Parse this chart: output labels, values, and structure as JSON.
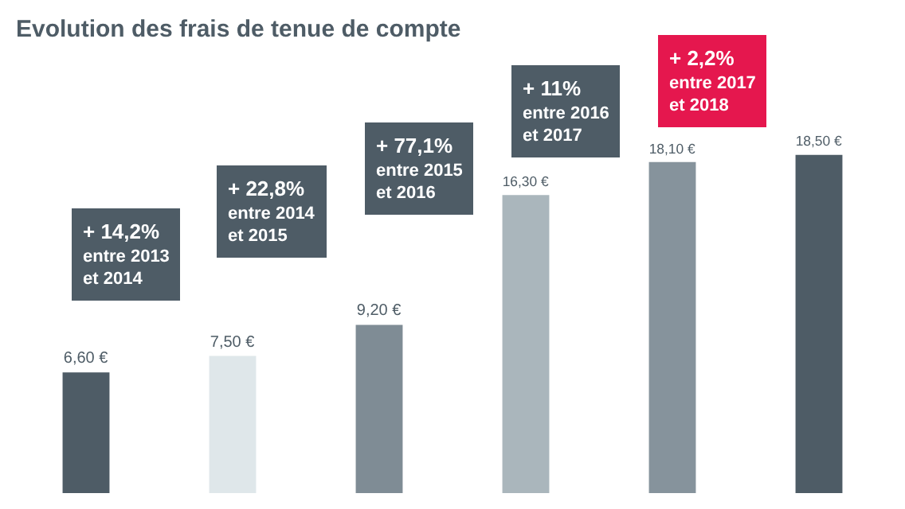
{
  "chart_data": {
    "type": "bar",
    "title": "Evolution des frais de tenue de compte",
    "categories": [
      null,
      null,
      null,
      null,
      null,
      null
    ],
    "values": [
      6.6,
      7.5,
      9.2,
      16.3,
      18.1,
      18.5
    ],
    "colors": [
      "#4e5c66",
      "#dfe7ea",
      "#7f8c95",
      "#aab6bc",
      "#86939c",
      "#4e5c66"
    ],
    "value_labels": [
      "6,60 €",
      "7,50 €",
      "9,20 €",
      "16,30 €",
      "18,10 €",
      "18,50 €"
    ],
    "annotations": [
      "+ 14,2%\nentre 2013\net 2014",
      "+ 22,8%\nentre 2014\net 2015",
      "+ 77,1%\nentre 2015\net 2016",
      "+ 11%\nentre 2016\net 2017",
      "+ 2,2%\nentre 2017\net 2018"
    ],
    "grid": false,
    "legend": false
  }
}
